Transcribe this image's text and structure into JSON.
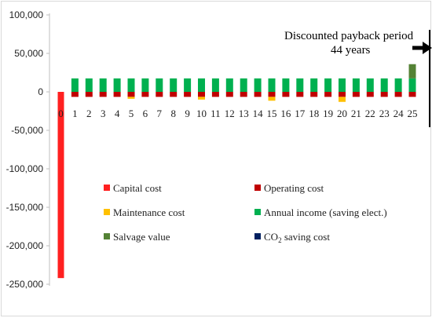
{
  "chart_data": {
    "type": "bar",
    "categories": [
      "0",
      "1",
      "2",
      "3",
      "4",
      "5",
      "6",
      "7",
      "8",
      "9",
      "10",
      "11",
      "12",
      "13",
      "14",
      "15",
      "16",
      "17",
      "18",
      "19",
      "20",
      "21",
      "22",
      "23",
      "24",
      "25"
    ],
    "ylim": [
      -250000,
      100000
    ],
    "yticks": [
      100000,
      50000,
      0,
      -50000,
      -100000,
      -150000,
      -200000,
      -250000
    ],
    "ytick_labels": [
      "100,000",
      "50,000",
      "0",
      "-50,000",
      "-100,000",
      "-150,000",
      "-200,000",
      "-250,000"
    ],
    "grid": false,
    "legend_position": "inside-lower-center",
    "series": [
      {
        "name": "Capital cost",
        "color": "#ff2020",
        "values": [
          -242000,
          0,
          0,
          0,
          0,
          0,
          0,
          0,
          0,
          0,
          0,
          0,
          0,
          0,
          0,
          0,
          0,
          0,
          0,
          0,
          0,
          0,
          0,
          0,
          0,
          0
        ]
      },
      {
        "name": "Operating cost",
        "color": "#c00000",
        "values": [
          0,
          -6500,
          -6500,
          -6500,
          -6500,
          -6500,
          -6500,
          -6500,
          -6500,
          -6500,
          -6500,
          -6500,
          -6500,
          -6500,
          -6500,
          -6500,
          -6500,
          -6500,
          -6500,
          -6500,
          -6500,
          -6500,
          -6500,
          -6500,
          -6500,
          -6500
        ]
      },
      {
        "name": "Maintenance cost",
        "color": "#ffc000",
        "values": [
          0,
          0,
          0,
          0,
          0,
          -2500,
          0,
          0,
          0,
          0,
          -3500,
          0,
          0,
          0,
          0,
          -5000,
          0,
          0,
          0,
          0,
          -6500,
          0,
          0,
          0,
          0,
          0
        ]
      },
      {
        "name": "Annual income (saving elect.)",
        "color": "#00b050",
        "values": [
          0,
          17500,
          17500,
          17500,
          17500,
          17500,
          17500,
          17500,
          17500,
          17500,
          17500,
          17500,
          17500,
          17500,
          17500,
          17500,
          17500,
          17500,
          17500,
          17500,
          17500,
          17500,
          17500,
          17500,
          17500,
          17500
        ]
      },
      {
        "name": "Salvage value",
        "color": "#548235",
        "values": [
          0,
          0,
          0,
          0,
          0,
          0,
          0,
          0,
          0,
          0,
          0,
          0,
          0,
          0,
          0,
          0,
          0,
          0,
          0,
          0,
          0,
          0,
          0,
          0,
          0,
          18500
        ]
      },
      {
        "name": "CO₂ saving cost",
        "color": "#002060",
        "values": [
          0,
          0,
          0,
          0,
          0,
          0,
          0,
          0,
          0,
          0,
          0,
          0,
          0,
          0,
          0,
          0,
          0,
          0,
          0,
          0,
          0,
          0,
          0,
          0,
          0,
          0
        ]
      }
    ],
    "annotations": [
      {
        "text_line1": "Discounted payback period",
        "text_line2": "44 years",
        "arrow": "right"
      }
    ]
  },
  "legend_labels": {
    "capital": "Capital cost",
    "operating": "Operating cost",
    "maintenance": "Maintenance cost",
    "income": "Annual income (saving elect.)",
    "salvage": "Salvage value",
    "co2_main": "CO",
    "co2_sub": "2",
    "co2_rest": " saving cost"
  }
}
